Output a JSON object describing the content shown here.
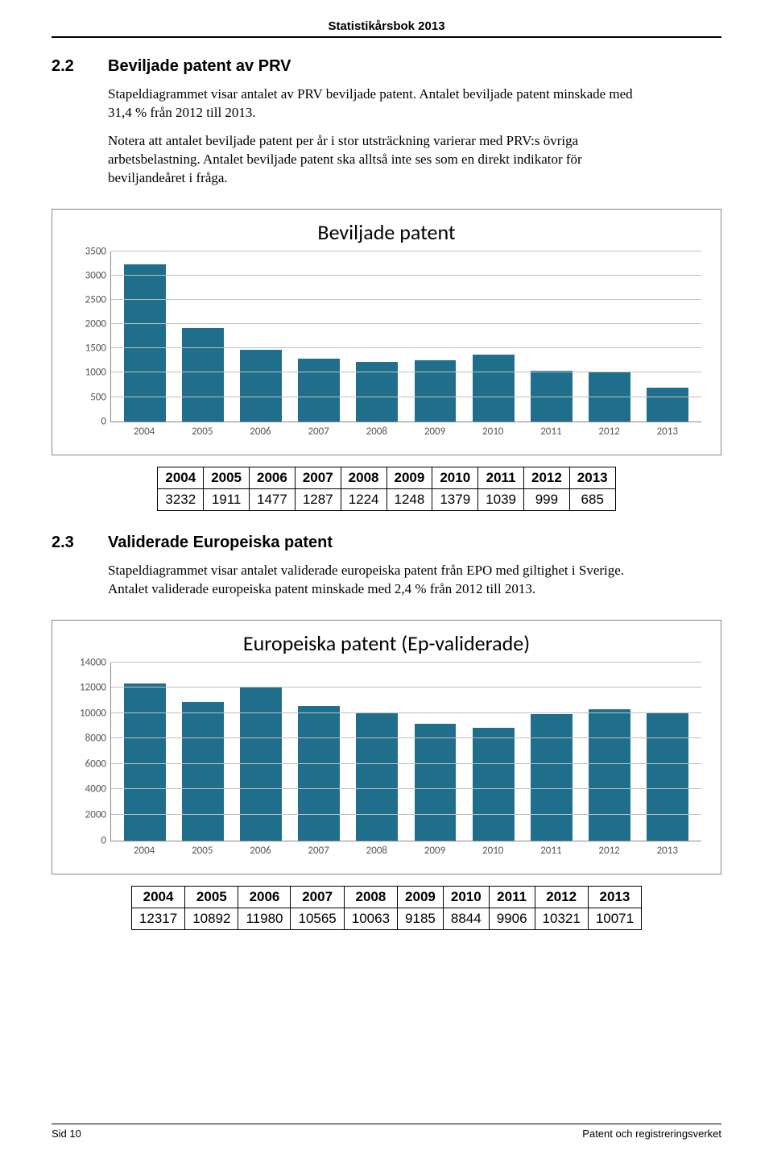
{
  "header": {
    "title": "Statistikårsbok 2013"
  },
  "section1": {
    "num": "2.2",
    "title": "Beviljade patent av PRV",
    "para1": "Stapeldiagrammet visar antalet av PRV beviljade patent. Antalet beviljade patent minskade med 31,4 % från 2012 till 2013.",
    "para2": "Notera att antalet beviljade patent per år i stor utsträckning varierar med PRV:s övriga arbetsbelastning. Antalet beviljade patent ska alltså inte ses som en direkt indikator för beviljandeåret i fråga."
  },
  "chart1": {
    "type": "bar",
    "title": "Beviljade patent",
    "categories": [
      "2004",
      "2005",
      "2006",
      "2007",
      "2008",
      "2009",
      "2010",
      "2011",
      "2012",
      "2013"
    ],
    "values": [
      3232,
      1911,
      1477,
      1287,
      1224,
      1248,
      1379,
      1039,
      999,
      685
    ],
    "ylim": [
      0,
      3500
    ],
    "ytick_step": 500,
    "bar_color": "#1f6e8c",
    "grid_color": "#bfbfbf",
    "title_fontsize": 26,
    "label_fontsize": 13,
    "background_color": "#ffffff"
  },
  "table1": {
    "columns": [
      "2004",
      "2005",
      "2006",
      "2007",
      "2008",
      "2009",
      "2010",
      "2011",
      "2012",
      "2013"
    ],
    "row": [
      "3232",
      "1911",
      "1477",
      "1287",
      "1224",
      "1248",
      "1379",
      "1039",
      "999",
      "685"
    ]
  },
  "section2": {
    "num": "2.3",
    "title": "Validerade Europeiska patent",
    "para1": "Stapeldiagrammet visar antalet validerade europeiska patent från EPO med giltighet i Sverige. Antalet validerade europeiska patent minskade med 2,4 % från 2012 till 2013."
  },
  "chart2": {
    "type": "bar",
    "title": "Europeiska patent (Ep-validerade)",
    "categories": [
      "2004",
      "2005",
      "2006",
      "2007",
      "2008",
      "2009",
      "2010",
      "2011",
      "2012",
      "2013"
    ],
    "values": [
      12317,
      10892,
      11980,
      10565,
      10063,
      9185,
      8844,
      9906,
      10321,
      10071
    ],
    "ylim": [
      0,
      14000
    ],
    "ytick_step": 2000,
    "bar_color": "#1f6e8c",
    "grid_color": "#bfbfbf",
    "title_fontsize": 26,
    "label_fontsize": 13,
    "background_color": "#ffffff"
  },
  "table2": {
    "columns": [
      "2004",
      "2005",
      "2006",
      "2007",
      "2008",
      "2009",
      "2010",
      "2011",
      "2012",
      "2013"
    ],
    "row": [
      "12317",
      "10892",
      "11980",
      "10565",
      "10063",
      "9185",
      "8844",
      "9906",
      "10321",
      "10071"
    ]
  },
  "footer": {
    "left": "Sid 10",
    "right": "Patent och registreringsverket"
  }
}
